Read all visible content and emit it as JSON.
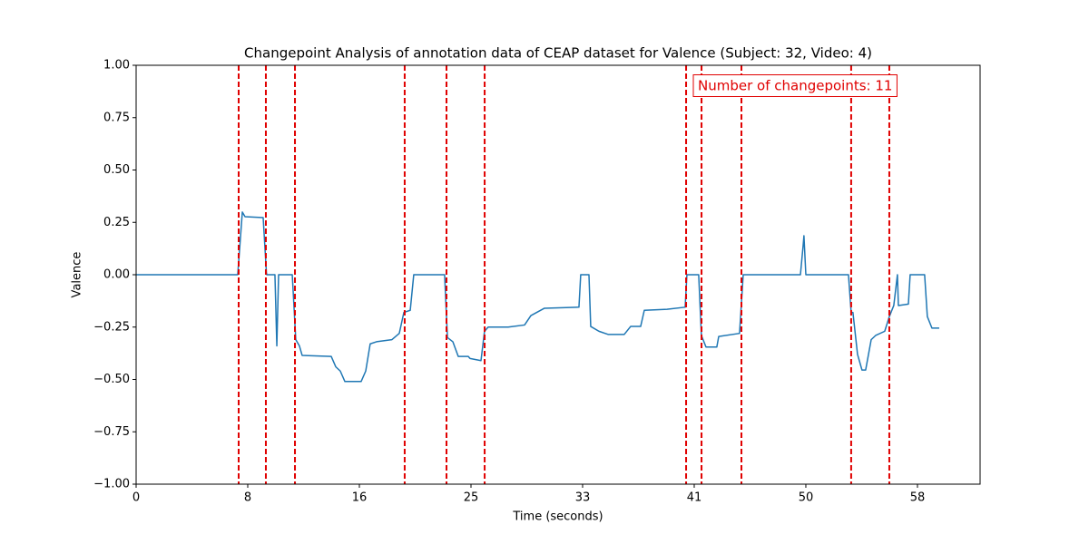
{
  "chart_data": {
    "type": "line",
    "title": "Changepoint Analysis of annotation data of CEAP dataset for Valence (Subject: 32, Video: 4)",
    "xlabel": "Time (seconds)",
    "ylabel": "Valence",
    "color": "#1f77b4",
    "x": [
      0,
      7.51,
      7.85,
      8.05,
      9.39,
      9.63,
      9.66,
      10.26,
      10.4,
      10.53,
      11.54,
      11.8,
      12.07,
      12.27,
      14.42,
      14.76,
      15.09,
      15.43,
      16.63,
      16.97,
      17.3,
      17.77,
      18.91,
      19.45,
      19.79,
      20.26,
      20.52,
      22.8,
      23.01,
      23.41,
      23.81,
      24.55,
      24.68,
      25.49,
      25.75,
      26.02,
      27.5,
      28.71,
      29.18,
      30.18,
      32.73,
      32.86,
      33.47,
      33.6,
      34.21,
      34.88,
      36.08,
      36.55,
      37.29,
      37.56,
      39.24,
      40.58,
      40.71,
      41.58,
      41.78,
      42.12,
      42.92,
      43.06,
      44.6,
      44.87,
      49.1,
      49.3,
      49.36,
      49.5,
      52.65,
      52.85,
      52.98,
      53.32,
      53.65,
      53.92,
      54.33,
      54.66,
      55.33,
      55.67,
      56.0,
      56.27,
      56.34,
      57.08,
      57.21,
      58.28,
      58.48,
      58.82,
      59.36
    ],
    "values": [
      0,
      0,
      0.299,
      0.277,
      0.273,
      0.01,
      0,
      0,
      -0.34,
      0,
      0,
      -0.31,
      -0.34,
      -0.385,
      -0.39,
      -0.44,
      -0.46,
      -0.51,
      -0.51,
      -0.46,
      -0.33,
      -0.32,
      -0.31,
      -0.28,
      -0.18,
      -0.17,
      0,
      0,
      -0.3,
      -0.32,
      -0.39,
      -0.39,
      -0.4,
      -0.41,
      -0.27,
      -0.25,
      -0.25,
      -0.24,
      -0.195,
      -0.16,
      -0.155,
      0,
      0,
      -0.247,
      -0.27,
      -0.285,
      -0.285,
      -0.247,
      -0.247,
      -0.17,
      -0.165,
      -0.155,
      0,
      0,
      -0.29,
      -0.345,
      -0.345,
      -0.295,
      -0.28,
      0,
      0,
      0.14,
      0.186,
      0,
      0,
      -0.18,
      -0.18,
      -0.38,
      -0.455,
      -0.455,
      -0.31,
      -0.29,
      -0.27,
      -0.2,
      -0.147,
      0,
      -0.147,
      -0.14,
      0,
      0,
      -0.2,
      -0.255,
      -0.255
    ],
    "changepoints": [
      7.58,
      9.59,
      11.74,
      19.85,
      22.94,
      25.76,
      40.65,
      41.79,
      44.74,
      52.85,
      55.67
    ],
    "changepoint_color": "#e00000",
    "annotation": "Number of changepoints: 11",
    "xlim": [
      0,
      62.38
    ],
    "ylim": [
      -1,
      1
    ],
    "xticks": [
      0,
      {
        "value": 8.25,
        "label": "8"
      },
      {
        "value": 16.5,
        "label": "16"
      },
      {
        "value": 24.75,
        "label": "25"
      },
      33,
      {
        "value": 41.25,
        "label": "41"
      },
      {
        "value": 49.5,
        "label": "50"
      },
      {
        "value": 57.75,
        "label": "58"
      }
    ],
    "yticks": [
      {
        "value": -1,
        "label": "−1.00"
      },
      {
        "value": -0.75,
        "label": "−0.75"
      },
      {
        "value": -0.5,
        "label": "−0.50"
      },
      {
        "value": -0.25,
        "label": "−0.25"
      },
      {
        "value": 0,
        "label": "0.00"
      },
      {
        "value": 0.25,
        "label": "0.25"
      },
      {
        "value": 0.5,
        "label": "0.50"
      },
      {
        "value": 0.75,
        "label": "0.75"
      },
      {
        "value": 1,
        "label": "1.00"
      }
    ],
    "grid": false
  }
}
